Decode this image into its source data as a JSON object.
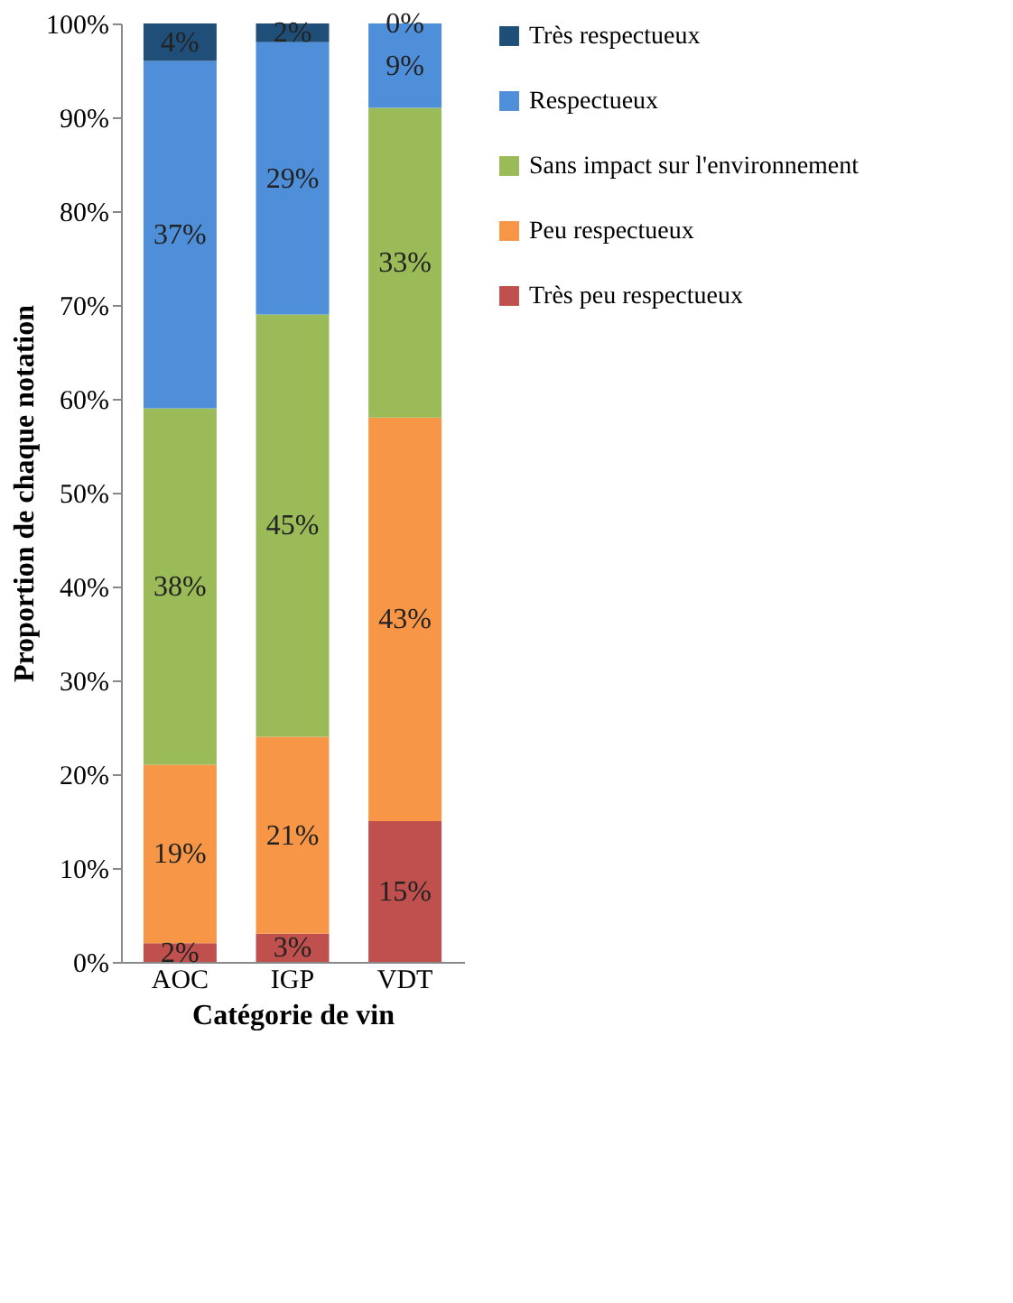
{
  "chart_data": {
    "type": "bar",
    "stacked": true,
    "xlabel": "Catégorie de vin",
    "ylabel": "Proportion de chaque notation",
    "categories": [
      "AOC",
      "IGP",
      "VDT"
    ],
    "series": [
      {
        "name": "Très peu respectueux",
        "color": "#c0504d",
        "values": [
          2,
          3,
          15
        ],
        "value_labels": [
          "2%",
          "3%",
          "15%"
        ]
      },
      {
        "name": "Peu respectueux",
        "color": "#f79646",
        "values": [
          19,
          21,
          43
        ],
        "value_labels": [
          "19%",
          "21%",
          "43%"
        ]
      },
      {
        "name": "Sans impact sur l'environnement",
        "color": "#9bbb59",
        "values": [
          38,
          45,
          33
        ],
        "value_labels": [
          "38%",
          "45%",
          "33%"
        ]
      },
      {
        "name": "Respectueux",
        "color": "#4f8fd9",
        "values": [
          37,
          29,
          9
        ],
        "value_labels": [
          "37%",
          "29%",
          "9%"
        ]
      },
      {
        "name": "Très respectueux",
        "color": "#1f4e79",
        "values": [
          4,
          2,
          0
        ],
        "value_labels": [
          "4%",
          "2%",
          "0%"
        ]
      }
    ],
    "ylim": [
      0,
      100
    ],
    "yticks": [
      {
        "value": 0,
        "label": "0%"
      },
      {
        "value": 10,
        "label": "10%"
      },
      {
        "value": 20,
        "label": "20%"
      },
      {
        "value": 30,
        "label": "30%"
      },
      {
        "value": 40,
        "label": "40%"
      },
      {
        "value": 50,
        "label": "50%"
      },
      {
        "value": 60,
        "label": "60%"
      },
      {
        "value": 70,
        "label": "70%"
      },
      {
        "value": 80,
        "label": "80%"
      },
      {
        "value": 90,
        "label": "90%"
      },
      {
        "value": 100,
        "label": "100%"
      }
    ],
    "legend": "right"
  }
}
